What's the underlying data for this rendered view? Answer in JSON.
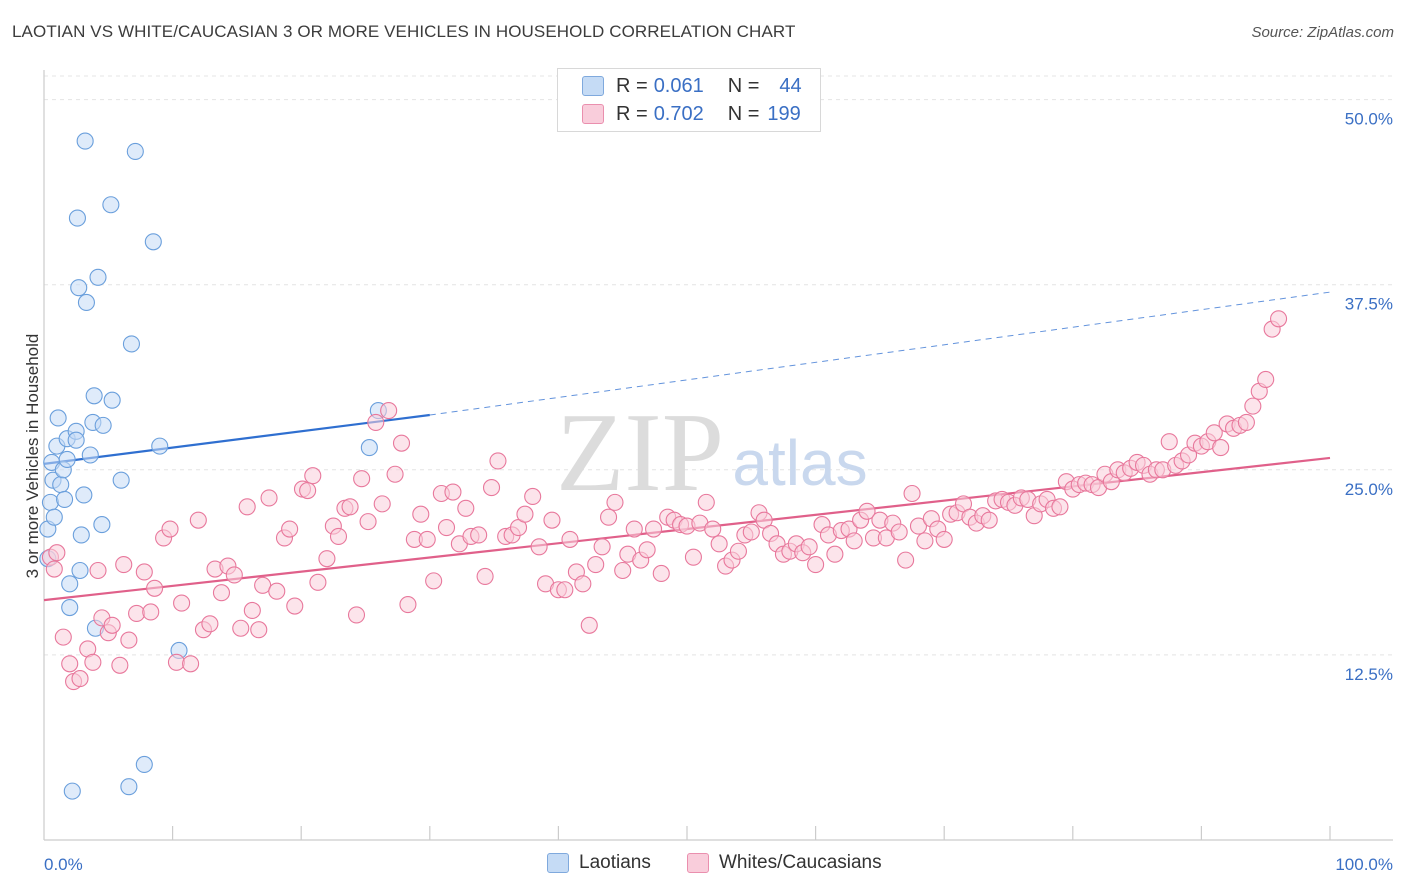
{
  "header": {
    "title": "LAOTIAN VS WHITE/CAUCASIAN 3 OR MORE VEHICLES IN HOUSEHOLD CORRELATION CHART",
    "source": "Source: ZipAtlas.com"
  },
  "watermark": {
    "zip": "ZIP",
    "atlas": "atlas"
  },
  "legend": {
    "items": [
      {
        "r_label": "R =",
        "r_value": "0.061",
        "n_label": "N =",
        "n_value": "44",
        "color": "#a8c8f0"
      },
      {
        "r_label": "R =",
        "r_value": "0.702",
        "n_label": "N =",
        "n_value": "199",
        "color": "#f5b8cc"
      }
    ]
  },
  "bottom_legend": {
    "laotians": "Laotians",
    "whites": "Whites/Caucasians"
  },
  "chart_data": {
    "type": "scatter",
    "title": "LAOTIAN VS WHITE/CAUCASIAN 3 OR MORE VEHICLES IN HOUSEHOLD CORRELATION CHART",
    "xlabel": "",
    "ylabel": "3 or more Vehicles in Household",
    "xlim": [
      0,
      100
    ],
    "ylim": [
      0,
      52
    ],
    "x_tick_labels": [
      "0.0%",
      "100.0%"
    ],
    "y_ticks": [
      {
        "value": 12.5,
        "label": "12.5%"
      },
      {
        "value": 25.0,
        "label": "25.0%"
      },
      {
        "value": 37.5,
        "label": "37.5%"
      },
      {
        "value": 50.0,
        "label": "50.0%"
      }
    ],
    "series": [
      {
        "name": "Laotians",
        "color": "#6a9fdc",
        "fill": "#c5dbf5",
        "trend": {
          "x0": 0,
          "y0": 25.4,
          "x1": 30,
          "y1": 28.7,
          "dashed_to_x": 100,
          "dashed_to_y": 37.0,
          "color": "#2f6fd0"
        },
        "points": [
          [
            0.3,
            19.0
          ],
          [
            0.3,
            21.0
          ],
          [
            0.5,
            22.8
          ],
          [
            0.6,
            25.5
          ],
          [
            0.7,
            24.3
          ],
          [
            0.8,
            21.8
          ],
          [
            1.0,
            26.6
          ],
          [
            1.1,
            28.5
          ],
          [
            1.3,
            24.0
          ],
          [
            1.5,
            25.0
          ],
          [
            1.6,
            23.0
          ],
          [
            1.8,
            25.7
          ],
          [
            1.8,
            27.1
          ],
          [
            2.0,
            17.3
          ],
          [
            2.0,
            15.7
          ],
          [
            2.2,
            3.3
          ],
          [
            2.5,
            27.6
          ],
          [
            2.5,
            27.0
          ],
          [
            2.6,
            42.0
          ],
          [
            2.7,
            37.3
          ],
          [
            2.8,
            18.2
          ],
          [
            2.9,
            20.6
          ],
          [
            3.1,
            23.3
          ],
          [
            3.2,
            47.2
          ],
          [
            3.3,
            36.3
          ],
          [
            3.6,
            26.0
          ],
          [
            3.8,
            28.2
          ],
          [
            3.9,
            30.0
          ],
          [
            4.0,
            14.3
          ],
          [
            4.2,
            38.0
          ],
          [
            4.5,
            21.3
          ],
          [
            4.6,
            28.0
          ],
          [
            5.2,
            42.9
          ],
          [
            5.3,
            29.7
          ],
          [
            6.0,
            24.3
          ],
          [
            6.6,
            3.6
          ],
          [
            6.8,
            33.5
          ],
          [
            7.1,
            46.5
          ],
          [
            7.8,
            5.1
          ],
          [
            8.5,
            40.4
          ],
          [
            9.0,
            26.6
          ],
          [
            10.5,
            12.8
          ],
          [
            25.3,
            26.5
          ],
          [
            26.0,
            29.0
          ]
        ]
      },
      {
        "name": "Whites/Caucasians",
        "color": "#e8789c",
        "fill": "#f9cddb",
        "trend": {
          "x0": 0,
          "y0": 16.2,
          "x1": 100,
          "y1": 25.8,
          "color": "#e0608a"
        },
        "points": [
          [
            0.5,
            19.1
          ],
          [
            0.8,
            18.3
          ],
          [
            1.0,
            19.4
          ],
          [
            1.5,
            13.7
          ],
          [
            2.0,
            11.9
          ],
          [
            2.3,
            10.7
          ],
          [
            2.8,
            10.9
          ],
          [
            3.4,
            12.9
          ],
          [
            3.8,
            12.0
          ],
          [
            4.2,
            18.2
          ],
          [
            4.5,
            15.0
          ],
          [
            5.0,
            14.0
          ],
          [
            5.3,
            14.5
          ],
          [
            5.9,
            11.8
          ],
          [
            6.2,
            18.6
          ],
          [
            6.6,
            13.5
          ],
          [
            7.2,
            15.3
          ],
          [
            7.8,
            18.1
          ],
          [
            8.3,
            15.4
          ],
          [
            8.6,
            17.0
          ],
          [
            9.3,
            20.4
          ],
          [
            9.8,
            21.0
          ],
          [
            10.3,
            12.0
          ],
          [
            10.7,
            16.0
          ],
          [
            11.4,
            11.9
          ],
          [
            12.0,
            21.6
          ],
          [
            12.4,
            14.2
          ],
          [
            12.9,
            14.6
          ],
          [
            13.3,
            18.3
          ],
          [
            13.8,
            16.7
          ],
          [
            14.3,
            18.5
          ],
          [
            14.8,
            17.9
          ],
          [
            15.3,
            14.3
          ],
          [
            15.8,
            22.5
          ],
          [
            16.2,
            15.5
          ],
          [
            16.7,
            14.2
          ],
          [
            17.0,
            17.2
          ],
          [
            17.5,
            23.1
          ],
          [
            18.1,
            16.8
          ],
          [
            18.7,
            20.4
          ],
          [
            19.1,
            21.0
          ],
          [
            19.5,
            15.8
          ],
          [
            20.1,
            23.7
          ],
          [
            20.5,
            23.6
          ],
          [
            20.9,
            24.6
          ],
          [
            21.3,
            17.4
          ],
          [
            22.0,
            19.0
          ],
          [
            22.5,
            21.2
          ],
          [
            22.9,
            20.5
          ],
          [
            23.4,
            22.4
          ],
          [
            23.8,
            22.5
          ],
          [
            24.3,
            15.2
          ],
          [
            24.7,
            24.4
          ],
          [
            25.2,
            21.5
          ],
          [
            25.8,
            28.2
          ],
          [
            26.3,
            22.7
          ],
          [
            26.8,
            29.0
          ],
          [
            27.3,
            24.7
          ],
          [
            27.8,
            26.8
          ],
          [
            28.3,
            15.9
          ],
          [
            28.8,
            20.3
          ],
          [
            29.3,
            22.0
          ],
          [
            29.8,
            20.3
          ],
          [
            30.3,
            17.5
          ],
          [
            30.9,
            23.4
          ],
          [
            31.3,
            21.1
          ],
          [
            31.8,
            23.5
          ],
          [
            32.3,
            20.0
          ],
          [
            32.8,
            22.4
          ],
          [
            33.2,
            20.5
          ],
          [
            33.8,
            20.6
          ],
          [
            34.3,
            17.8
          ],
          [
            34.8,
            23.8
          ],
          [
            35.3,
            25.6
          ],
          [
            35.9,
            20.5
          ],
          [
            36.4,
            20.6
          ],
          [
            36.9,
            21.1
          ],
          [
            37.4,
            22.0
          ],
          [
            38.0,
            23.2
          ],
          [
            38.5,
            19.8
          ],
          [
            39.0,
            17.3
          ],
          [
            39.5,
            21.6
          ],
          [
            40.0,
            16.9
          ],
          [
            40.5,
            16.9
          ],
          [
            40.9,
            20.3
          ],
          [
            41.4,
            18.1
          ],
          [
            41.9,
            17.3
          ],
          [
            42.4,
            14.5
          ],
          [
            42.9,
            18.6
          ],
          [
            43.4,
            19.8
          ],
          [
            43.9,
            21.8
          ],
          [
            44.4,
            22.8
          ],
          [
            45.0,
            18.2
          ],
          [
            45.4,
            19.3
          ],
          [
            45.9,
            21.0
          ],
          [
            46.4,
            18.9
          ],
          [
            46.9,
            19.6
          ],
          [
            47.4,
            21.0
          ],
          [
            48.0,
            18.0
          ],
          [
            48.5,
            21.8
          ],
          [
            49.0,
            21.6
          ],
          [
            49.5,
            21.3
          ],
          [
            50.0,
            21.2
          ],
          [
            50.5,
            19.1
          ],
          [
            51.0,
            21.4
          ],
          [
            51.5,
            22.8
          ],
          [
            52.0,
            21.0
          ],
          [
            52.5,
            20.0
          ],
          [
            53.0,
            18.5
          ],
          [
            53.5,
            18.9
          ],
          [
            54.0,
            19.5
          ],
          [
            54.5,
            20.6
          ],
          [
            55.0,
            20.8
          ],
          [
            55.6,
            22.1
          ],
          [
            56.0,
            21.6
          ],
          [
            56.5,
            20.7
          ],
          [
            57.0,
            20.0
          ],
          [
            57.5,
            19.3
          ],
          [
            58.0,
            19.5
          ],
          [
            58.5,
            20.0
          ],
          [
            59.0,
            19.4
          ],
          [
            59.5,
            19.8
          ],
          [
            60.0,
            18.6
          ],
          [
            60.5,
            21.3
          ],
          [
            61.0,
            20.6
          ],
          [
            61.5,
            19.3
          ],
          [
            62.0,
            20.9
          ],
          [
            62.6,
            21.0
          ],
          [
            63.0,
            20.2
          ],
          [
            63.5,
            21.6
          ],
          [
            64.0,
            22.2
          ],
          [
            64.5,
            20.4
          ],
          [
            65.0,
            21.6
          ],
          [
            65.5,
            20.4
          ],
          [
            66.0,
            21.4
          ],
          [
            66.5,
            20.8
          ],
          [
            67.0,
            18.9
          ],
          [
            67.5,
            23.4
          ],
          [
            68.0,
            21.2
          ],
          [
            68.5,
            20.2
          ],
          [
            69.0,
            21.7
          ],
          [
            69.5,
            21.0
          ],
          [
            70.0,
            20.3
          ],
          [
            70.5,
            22.0
          ],
          [
            71.0,
            22.1
          ],
          [
            71.5,
            22.7
          ],
          [
            72.0,
            21.8
          ],
          [
            72.5,
            21.4
          ],
          [
            73.0,
            21.9
          ],
          [
            73.5,
            21.6
          ],
          [
            74.0,
            22.9
          ],
          [
            74.5,
            23.0
          ],
          [
            75.0,
            22.8
          ],
          [
            75.5,
            22.6
          ],
          [
            76.0,
            23.1
          ],
          [
            76.5,
            23.0
          ],
          [
            77.0,
            21.9
          ],
          [
            77.5,
            22.7
          ],
          [
            78.0,
            23.0
          ],
          [
            78.5,
            22.4
          ],
          [
            79.0,
            22.5
          ],
          [
            79.5,
            24.2
          ],
          [
            80.0,
            23.7
          ],
          [
            80.5,
            24.0
          ],
          [
            81.0,
            24.1
          ],
          [
            81.5,
            24.0
          ],
          [
            82.0,
            23.8
          ],
          [
            82.5,
            24.7
          ],
          [
            83.0,
            24.2
          ],
          [
            83.5,
            25.0
          ],
          [
            84.0,
            24.8
          ],
          [
            84.5,
            25.1
          ],
          [
            85.0,
            25.5
          ],
          [
            85.5,
            25.3
          ],
          [
            86.0,
            24.7
          ],
          [
            86.5,
            25.0
          ],
          [
            87.0,
            25.0
          ],
          [
            87.5,
            26.9
          ],
          [
            88.0,
            25.3
          ],
          [
            88.5,
            25.6
          ],
          [
            89.0,
            26.0
          ],
          [
            89.5,
            26.8
          ],
          [
            90.0,
            26.6
          ],
          [
            90.5,
            26.9
          ],
          [
            91.0,
            27.5
          ],
          [
            91.5,
            26.5
          ],
          [
            92.0,
            28.1
          ],
          [
            92.5,
            27.8
          ],
          [
            93.0,
            28.0
          ],
          [
            93.5,
            28.2
          ],
          [
            94.0,
            29.3
          ],
          [
            94.5,
            30.3
          ],
          [
            95.0,
            31.1
          ],
          [
            95.5,
            34.5
          ],
          [
            96.0,
            35.2
          ]
        ]
      }
    ]
  }
}
